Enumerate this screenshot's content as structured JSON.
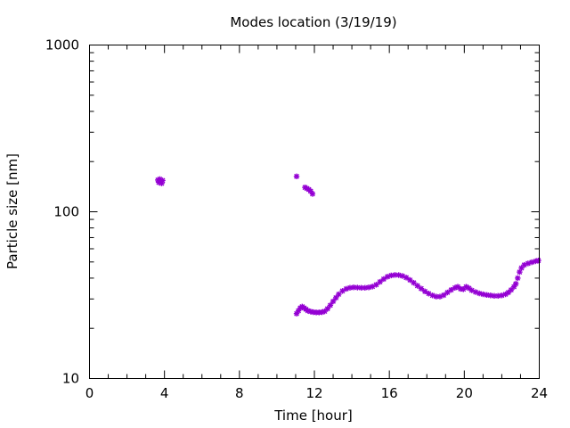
{
  "chart_data": {
    "type": "scatter",
    "title": "Modes location (3/19/19)",
    "xlabel": "Time [hour]",
    "ylabel": "Particle size [nm]",
    "xlim": [
      0,
      24
    ],
    "ylim": [
      10,
      1000
    ],
    "yscale": "log",
    "grid": false,
    "legend": "none",
    "x_ticks": [
      "0",
      "4",
      "8",
      "12",
      "16",
      "20",
      "24"
    ],
    "y_ticks": [
      "10",
      "100",
      "1000"
    ],
    "marker_color": "#9400d3",
    "series": [
      {
        "points": [
          [
            3.65,
            155
          ],
          [
            3.7,
            150
          ],
          [
            3.75,
            157
          ],
          [
            3.8,
            152
          ],
          [
            3.85,
            148
          ],
          [
            3.9,
            154
          ],
          [
            11.05,
            163
          ],
          [
            11.5,
            140
          ],
          [
            11.6,
            138
          ],
          [
            11.7,
            136
          ],
          [
            11.8,
            133
          ],
          [
            11.9,
            128
          ],
          [
            11.05,
            24.5
          ],
          [
            11.15,
            25.5
          ],
          [
            11.25,
            26.5
          ],
          [
            11.35,
            27.0
          ],
          [
            11.45,
            26.5
          ],
          [
            11.55,
            26.0
          ],
          [
            11.65,
            25.5
          ],
          [
            11.8,
            25.2
          ],
          [
            11.95,
            25.0
          ],
          [
            12.1,
            24.9
          ],
          [
            12.25,
            24.9
          ],
          [
            12.4,
            25.0
          ],
          [
            12.55,
            25.3
          ],
          [
            12.7,
            26.2
          ],
          [
            12.85,
            27.5
          ],
          [
            13.0,
            29.0
          ],
          [
            13.15,
            30.5
          ],
          [
            13.3,
            32.0
          ],
          [
            13.5,
            33.5
          ],
          [
            13.7,
            34.5
          ],
          [
            13.9,
            35.0
          ],
          [
            14.1,
            35.2
          ],
          [
            14.3,
            35.1
          ],
          [
            14.5,
            35.0
          ],
          [
            14.7,
            35.0
          ],
          [
            14.9,
            35.2
          ],
          [
            15.1,
            35.6
          ],
          [
            15.3,
            36.5
          ],
          [
            15.5,
            38.0
          ],
          [
            15.7,
            39.5
          ],
          [
            15.9,
            40.8
          ],
          [
            16.1,
            41.5
          ],
          [
            16.3,
            41.8
          ],
          [
            16.5,
            41.7
          ],
          [
            16.7,
            41.2
          ],
          [
            16.9,
            40.3
          ],
          [
            17.1,
            39.0
          ],
          [
            17.3,
            37.5
          ],
          [
            17.5,
            36.0
          ],
          [
            17.7,
            34.6
          ],
          [
            17.9,
            33.3
          ],
          [
            18.1,
            32.3
          ],
          [
            18.3,
            31.5
          ],
          [
            18.5,
            31.0
          ],
          [
            18.7,
            31.0
          ],
          [
            18.9,
            31.6
          ],
          [
            19.1,
            32.8
          ],
          [
            19.3,
            34.0
          ],
          [
            19.5,
            35.0
          ],
          [
            19.65,
            35.5
          ],
          [
            19.8,
            34.5
          ],
          [
            19.95,
            34.3
          ],
          [
            20.1,
            35.5
          ],
          [
            20.25,
            34.8
          ],
          [
            20.4,
            33.8
          ],
          [
            20.6,
            33.0
          ],
          [
            20.8,
            32.4
          ],
          [
            21.0,
            32.0
          ],
          [
            21.2,
            31.7
          ],
          [
            21.4,
            31.5
          ],
          [
            21.6,
            31.3
          ],
          [
            21.8,
            31.3
          ],
          [
            22.0,
            31.5
          ],
          [
            22.2,
            32.0
          ],
          [
            22.35,
            32.8
          ],
          [
            22.5,
            34.0
          ],
          [
            22.65,
            35.5
          ],
          [
            22.75,
            37.0
          ],
          [
            22.85,
            40.0
          ],
          [
            22.95,
            43.5
          ],
          [
            23.05,
            46.0
          ],
          [
            23.2,
            48.0
          ],
          [
            23.4,
            49.0
          ],
          [
            23.6,
            49.8
          ],
          [
            23.8,
            50.5
          ],
          [
            23.95,
            51.0
          ]
        ]
      }
    ]
  }
}
